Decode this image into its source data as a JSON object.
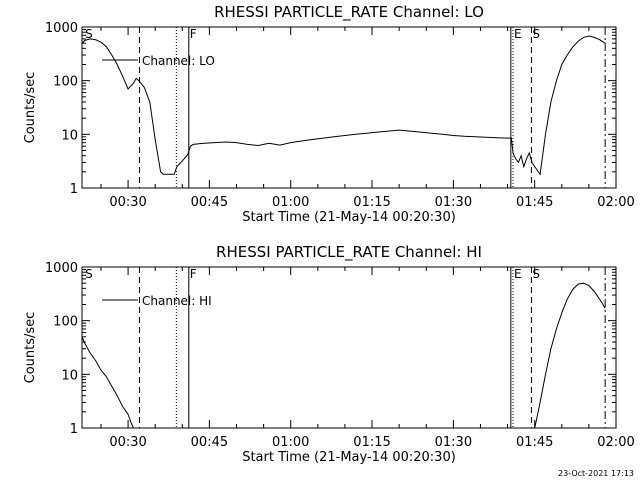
{
  "chart_data": [
    {
      "type": "line",
      "title": "RHESSI PARTICLE_RATE Channel: LO",
      "xlabel": "Start Time (21-May-14 00:20:30)",
      "ylabel": "Counts/sec",
      "xlim_minutes": [
        21.5,
        120.0
      ],
      "ylim": [
        1,
        1000
      ],
      "yscale": "log",
      "x_ticks": [
        {
          "minute": 30,
          "label": "00:30"
        },
        {
          "minute": 45,
          "label": "00:45"
        },
        {
          "minute": 60,
          "label": "01:00"
        },
        {
          "minute": 75,
          "label": "01:15"
        },
        {
          "minute": 90,
          "label": "01:30"
        },
        {
          "minute": 105,
          "label": "01:45"
        },
        {
          "minute": 120,
          "label": "02:00"
        }
      ],
      "y_ticks": [
        {
          "value": 1,
          "label": "1"
        },
        {
          "value": 10,
          "label": "10"
        },
        {
          "value": 100,
          "label": "100"
        },
        {
          "value": 1000,
          "label": "1000"
        }
      ],
      "legend": "Channel: LO",
      "legend_position": "top-left",
      "markers": [
        {
          "minute": 21.9,
          "label": "S",
          "style": "none"
        },
        {
          "minute": 32.1,
          "label": "",
          "style": "dashed"
        },
        {
          "minute": 38.9,
          "label": "",
          "style": "dotted"
        },
        {
          "minute": 41.2,
          "label": "F",
          "style": "solid"
        },
        {
          "minute": 100.6,
          "label": "",
          "style": "solid"
        },
        {
          "minute": 101.0,
          "label": "E",
          "style": "dotted"
        },
        {
          "minute": 104.4,
          "label": "S",
          "style": "dashed"
        },
        {
          "minute": 118.0,
          "label": "",
          "style": "dashdot"
        }
      ],
      "series": [
        {
          "name": "Channel: LO",
          "x": [
            21.5,
            22,
            23,
            24,
            25,
            26,
            27,
            28,
            29,
            30,
            31,
            31.5,
            32,
            33,
            34,
            35,
            36,
            36.5,
            37,
            38,
            38.5,
            39,
            40,
            41,
            41.5,
            42,
            44,
            46,
            48,
            50,
            52,
            54,
            56,
            58,
            60,
            62,
            64,
            66,
            68,
            70,
            72,
            74,
            76,
            78,
            80,
            82,
            84,
            86,
            88,
            90,
            92,
            94,
            96,
            98,
            100,
            100.7,
            101,
            101.5,
            102,
            102.5,
            103,
            103.5,
            104,
            104.5,
            105,
            106,
            107,
            108,
            109,
            110,
            111,
            112,
            113,
            114,
            115,
            116,
            117,
            118
          ],
          "values": [
            500,
            560,
            600,
            580,
            520,
            430,
            300,
            200,
            120,
            70,
            90,
            110,
            100,
            75,
            40,
            8,
            2,
            1.8,
            1.8,
            1.8,
            1.8,
            2.5,
            3.2,
            4.2,
            6,
            6.5,
            6.8,
            7,
            7.2,
            7,
            6.5,
            6.2,
            6.8,
            6.3,
            7,
            7.5,
            8,
            8.5,
            9,
            9.5,
            10,
            10.5,
            11,
            11.5,
            12,
            11.5,
            11,
            10.5,
            10,
            9.5,
            9.2,
            9,
            8.8,
            8.6,
            8.5,
            8.5,
            4.5,
            3.5,
            3,
            4,
            2.5,
            3.5,
            4.5,
            3,
            2.5,
            1.8,
            10,
            40,
            100,
            200,
            300,
            420,
            540,
            640,
            680,
            640,
            580,
            500
          ]
        }
      ]
    },
    {
      "type": "line",
      "title": "RHESSI PARTICLE_RATE Channel: HI",
      "xlabel": "Start Time (21-May-14 00:20:30)",
      "ylabel": "Counts/sec",
      "xlim_minutes": [
        21.5,
        120.0
      ],
      "ylim": [
        1,
        1000
      ],
      "yscale": "log",
      "x_ticks": [
        {
          "minute": 30,
          "label": "00:30"
        },
        {
          "minute": 45,
          "label": "00:45"
        },
        {
          "minute": 60,
          "label": "01:00"
        },
        {
          "minute": 75,
          "label": "01:15"
        },
        {
          "minute": 90,
          "label": "01:30"
        },
        {
          "minute": 105,
          "label": "01:45"
        },
        {
          "minute": 120,
          "label": "02:00"
        }
      ],
      "y_ticks": [
        {
          "value": 1,
          "label": "1"
        },
        {
          "value": 10,
          "label": "10"
        },
        {
          "value": 100,
          "label": "100"
        },
        {
          "value": 1000,
          "label": "1000"
        }
      ],
      "legend": "Channel: HI",
      "legend_position": "top-left",
      "markers": [
        {
          "minute": 21.9,
          "label": "S",
          "style": "none"
        },
        {
          "minute": 32.1,
          "label": "",
          "style": "dashed"
        },
        {
          "minute": 38.9,
          "label": "",
          "style": "dotted"
        },
        {
          "minute": 41.2,
          "label": "F",
          "style": "solid"
        },
        {
          "minute": 100.6,
          "label": "",
          "style": "solid"
        },
        {
          "minute": 101.0,
          "label": "E",
          "style": "dotted"
        },
        {
          "minute": 104.4,
          "label": "S",
          "style": "dashed"
        },
        {
          "minute": 118.0,
          "label": "",
          "style": "dashdot"
        }
      ],
      "series": [
        {
          "name": "Channel: HI",
          "x": [
            21.5,
            22,
            23,
            24,
            25,
            26,
            27,
            28,
            29,
            30,
            30.5,
            31,
            105,
            106,
            107,
            108,
            109,
            110,
            111,
            112,
            113,
            114,
            115,
            116,
            117,
            118
          ],
          "values": [
            50,
            38,
            25,
            18,
            12,
            9,
            6,
            4,
            2.5,
            1.8,
            1.3,
            1,
            1,
            3,
            10,
            30,
            70,
            140,
            250,
            380,
            480,
            500,
            450,
            350,
            250,
            170
          ]
        }
      ]
    }
  ],
  "footer": "23-Oct-2021 17:13"
}
